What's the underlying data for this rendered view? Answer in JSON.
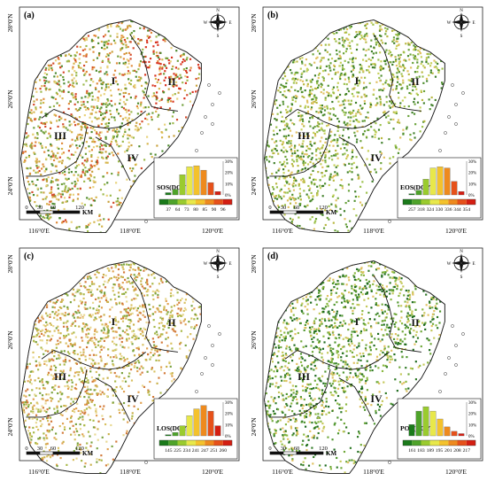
{
  "panels": [
    {
      "id": "a",
      "label": "(a)",
      "metric": "SOS(DOY)",
      "legend_ticks": [
        "37",
        "64",
        "73",
        "80",
        "85",
        "90",
        "96"
      ],
      "histogram": [
        2,
        5,
        18,
        25,
        26,
        22,
        11,
        3
      ],
      "lat_labels": [
        "28°0'N",
        "26°0'N",
        "24°0'N"
      ],
      "lon_labels": [
        "116°0'E",
        "118°0'E",
        "120°0'E"
      ],
      "regions": [
        "I",
        "II",
        "III",
        "IV"
      ]
    },
    {
      "id": "b",
      "label": "(b)",
      "metric": "EOS(DOY)",
      "legend_ticks": [
        "257",
        "318",
        "324",
        "330",
        "336",
        "344",
        "354"
      ],
      "histogram": [
        1,
        4,
        14,
        24,
        25,
        24,
        12,
        3
      ],
      "lat_labels": [
        "28°0'N",
        "26°0'N",
        "24°0'N"
      ],
      "lon_labels": [
        "116°0'E",
        "118°0'E",
        "120°0'E"
      ],
      "regions": [
        "I",
        "II",
        "III",
        "IV"
      ]
    },
    {
      "id": "c",
      "label": "(c)",
      "metric": "LOS(DOY)",
      "legend_ticks": [
        "145",
        "225",
        "234",
        "241",
        "247",
        "251",
        "260"
      ],
      "histogram": [
        1,
        3,
        9,
        18,
        24,
        27,
        22,
        9
      ],
      "lat_labels": [
        "28°0'N",
        "26°0'N",
        "24°0'N"
      ],
      "lon_labels": [
        "116°0'E",
        "118°0'E",
        "120°0'E"
      ],
      "regions": [
        "I",
        "II",
        "III",
        "IV"
      ]
    },
    {
      "id": "d",
      "label": "(d)",
      "metric": "POP(DOY)",
      "legend_ticks": [
        "161",
        "183",
        "189",
        "195",
        "201",
        "208",
        "217"
      ],
      "histogram": [
        10,
        22,
        26,
        22,
        15,
        8,
        4,
        2
      ],
      "lat_labels": [
        "28°0'N",
        "26°0'N",
        "24°0'N"
      ],
      "lon_labels": [
        "116°0'E",
        "118°0'E",
        "120°0'E"
      ],
      "regions": [
        "I",
        "II",
        "III",
        "IV"
      ]
    }
  ],
  "histogram_axis": [
    "30%",
    "20%",
    "10%",
    "0%"
  ],
  "scale_bar": {
    "ticks": [
      "0",
      "30",
      "60",
      "120"
    ],
    "unit": "KM"
  },
  "compass": {
    "N": "N",
    "S": "S",
    "E": "E",
    "W": "W"
  },
  "colors": {
    "class_colors": [
      "#1a7a1a",
      "#4ea32a",
      "#9acb2e",
      "#e8e84a",
      "#f4c22c",
      "#ee8a1e",
      "#e6511a",
      "#d41e12"
    ],
    "pixel_palette_a": [
      "#c8a03a",
      "#d6b44a",
      "#9bb84a",
      "#6f9e3a",
      "#e08a3a",
      "#d44a2a",
      "#e8d27a",
      "#4d8a2e"
    ],
    "pixel_palette_b": [
      "#6aa23a",
      "#4f8f2e",
      "#9bc04a",
      "#c6d05a",
      "#3e7e28",
      "#e0c060",
      "#b8b840"
    ],
    "pixel_palette_c": [
      "#c9b04a",
      "#d8c060",
      "#a8b848",
      "#e0a050",
      "#d27a3a",
      "#7aa23e",
      "#e8d890"
    ],
    "pixel_palette_d": [
      "#2f7a25",
      "#4f962e",
      "#1e6a1e",
      "#8ab840",
      "#c4c85a",
      "#6fa83a",
      "#e0c060"
    ]
  }
}
